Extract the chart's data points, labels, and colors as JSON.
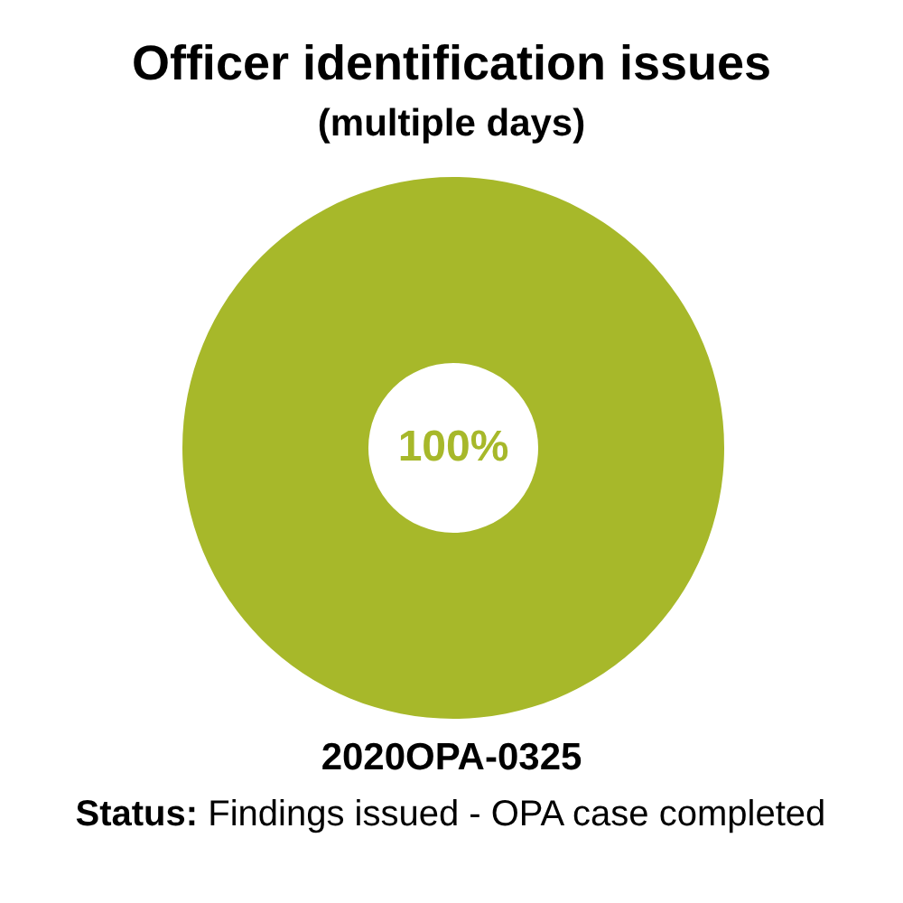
{
  "chart_data": {
    "type": "donut",
    "title": "Officer identification issues",
    "subtitle": "(multiple days)",
    "categories": [
      null
    ],
    "values": [
      100
    ],
    "colors": [
      "#a7b82a"
    ],
    "value_labels": [
      "100%"
    ],
    "annotations": [
      "2020OPA-0325",
      "Status: Findings issued - OPA case completed"
    ]
  }
}
